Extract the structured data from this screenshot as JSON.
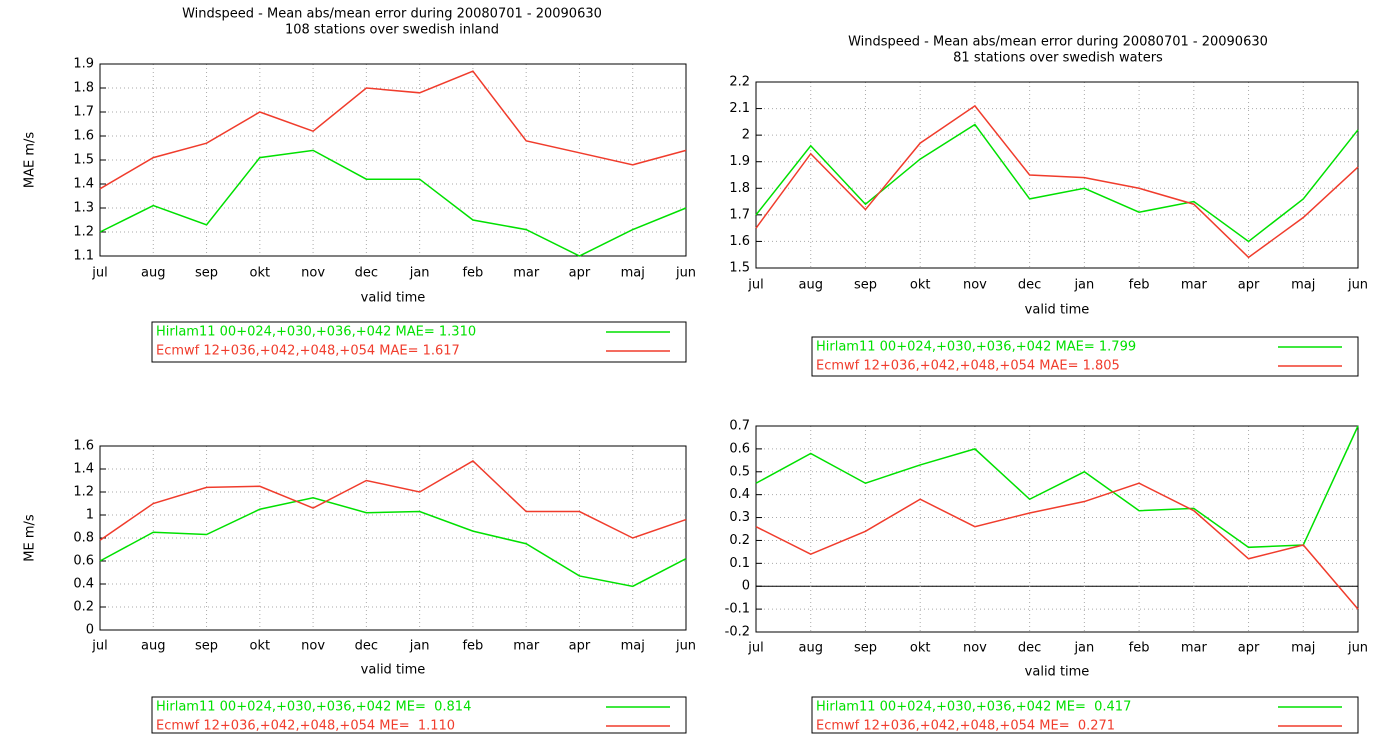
{
  "chart_data": [
    {
      "type": "line",
      "title": "Windspeed - Mean abs/mean error during 20080701 - 20090630",
      "subtitle": "108 stations over swedish inland",
      "x_label": "valid time",
      "y_label": "MAE m/s",
      "categories": [
        "jul",
        "aug",
        "sep",
        "okt",
        "nov",
        "dec",
        "jan",
        "feb",
        "mar",
        "apr",
        "maj",
        "jun"
      ],
      "series": [
        {
          "name": "Hirlam11 00+024,+030,+036,+042 MAE= 1.310",
          "color": "#00e000",
          "values": [
            1.2,
            1.31,
            1.23,
            1.51,
            1.54,
            1.42,
            1.42,
            1.25,
            1.21,
            1.1,
            1.21,
            1.3
          ]
        },
        {
          "name": "Ecmwf 12+036,+042,+048,+054 MAE= 1.617",
          "color": "#f03c2c",
          "values": [
            1.38,
            1.51,
            1.57,
            1.7,
            1.62,
            1.8,
            1.78,
            1.87,
            1.58,
            1.53,
            1.48,
            1.54
          ]
        }
      ],
      "ylim": [
        1.1,
        1.9
      ],
      "yticks": [
        1.1,
        1.2,
        1.3,
        1.4,
        1.5,
        1.6,
        1.7,
        1.8,
        1.9
      ],
      "grid": true
    },
    {
      "type": "line",
      "title": "Windspeed - Mean abs/mean error during 20080701 - 20090630",
      "subtitle": "81 stations over swedish waters",
      "x_label": "valid time",
      "categories": [
        "jul",
        "aug",
        "sep",
        "okt",
        "nov",
        "dec",
        "jan",
        "feb",
        "mar",
        "apr",
        "maj",
        "jun"
      ],
      "series": [
        {
          "name": "Hirlam11 00+024,+030,+036,+042 MAE= 1.799",
          "color": "#00e000",
          "values": [
            1.7,
            1.96,
            1.74,
            1.91,
            2.04,
            1.76,
            1.8,
            1.71,
            1.75,
            1.6,
            1.76,
            2.02
          ]
        },
        {
          "name": "Ecmwf 12+036,+042,+048,+054 MAE= 1.805",
          "color": "#f03c2c",
          "values": [
            1.65,
            1.93,
            1.72,
            1.97,
            2.11,
            1.85,
            1.84,
            1.8,
            1.74,
            1.54,
            1.69,
            1.88
          ]
        }
      ],
      "ylim": [
        1.5,
        2.2
      ],
      "yticks": [
        1.5,
        1.6,
        1.7,
        1.8,
        1.9,
        2,
        2.1,
        2.2
      ],
      "grid": true
    },
    {
      "type": "line",
      "x_label": "valid time",
      "y_label": "ME m/s",
      "categories": [
        "jul",
        "aug",
        "sep",
        "okt",
        "nov",
        "dec",
        "jan",
        "feb",
        "mar",
        "apr",
        "maj",
        "jun"
      ],
      "series": [
        {
          "name": "Hirlam11 00+024,+030,+036,+042 ME=  0.814",
          "color": "#00e000",
          "values": [
            0.6,
            0.85,
            0.83,
            1.05,
            1.15,
            1.02,
            1.03,
            0.86,
            0.75,
            0.47,
            0.38,
            0.62
          ]
        },
        {
          "name": "Ecmwf 12+036,+042,+048,+054 ME=  1.110",
          "color": "#f03c2c",
          "values": [
            0.78,
            1.1,
            1.24,
            1.25,
            1.06,
            1.3,
            1.2,
            1.47,
            1.03,
            1.03,
            0.8,
            0.96
          ]
        }
      ],
      "ylim": [
        0,
        1.6
      ],
      "yticks": [
        0,
        0.2,
        0.4,
        0.6,
        0.8,
        1,
        1.2,
        1.4,
        1.6
      ],
      "grid": true
    },
    {
      "type": "line",
      "x_label": "valid time",
      "categories": [
        "jul",
        "aug",
        "sep",
        "okt",
        "nov",
        "dec",
        "jan",
        "feb",
        "mar",
        "apr",
        "maj",
        "jun"
      ],
      "series": [
        {
          "name": "Hirlam11 00+024,+030,+036,+042 ME=  0.417",
          "color": "#00e000",
          "values": [
            0.45,
            0.58,
            0.45,
            0.53,
            0.6,
            0.38,
            0.5,
            0.33,
            0.34,
            0.17,
            0.18,
            0.7
          ]
        },
        {
          "name": "Ecmwf 12+036,+042,+048,+054 ME=  0.271",
          "color": "#f03c2c",
          "values": [
            0.26,
            0.14,
            0.24,
            0.38,
            0.26,
            0.32,
            0.37,
            0.45,
            0.33,
            0.12,
            0.18,
            -0.1
          ]
        }
      ],
      "ylim": [
        -0.2,
        0.7
      ],
      "yticks": [
        -0.2,
        -0.1,
        0,
        0.1,
        0.2,
        0.3,
        0.4,
        0.5,
        0.6,
        0.7
      ],
      "grid": true,
      "zero_line": true
    }
  ]
}
